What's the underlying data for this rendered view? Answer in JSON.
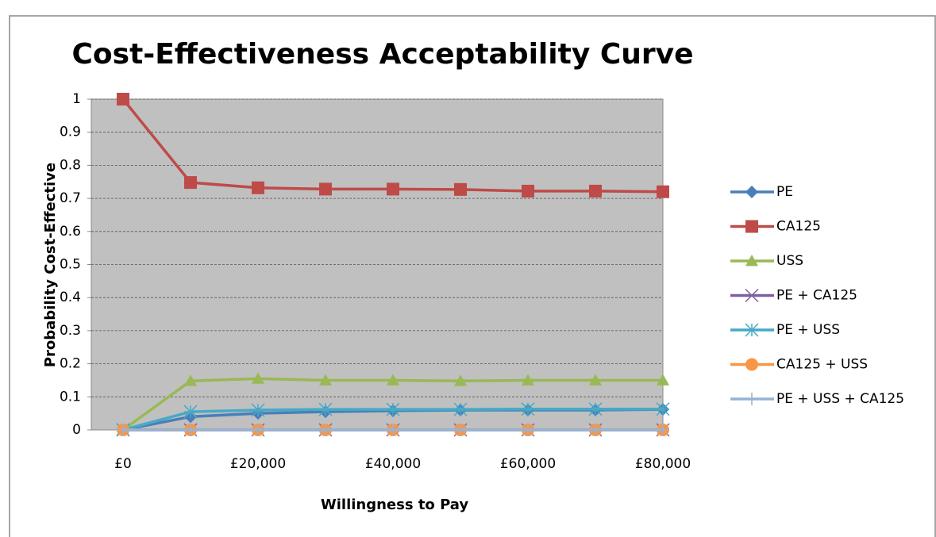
{
  "chart_data": {
    "type": "line",
    "title": "Cost-Effectiveness Acceptability Curve",
    "x_label": "Willingness to Pay",
    "y_label": "Probability Cost-Effective",
    "categories": [
      "£0",
      null,
      "£20,000",
      null,
      "£40,000",
      null,
      "£60,000",
      null,
      "£80,000"
    ],
    "ylim": [
      0,
      1
    ],
    "yticks": [
      0,
      0.1,
      0.2,
      0.3,
      0.4,
      0.5,
      0.6,
      0.7,
      0.8,
      0.9,
      1
    ],
    "grid": true,
    "legend": "right",
    "series": [
      {
        "name": "PE",
        "color": "#4a7ebb",
        "marker": "diamond",
        "values": [
          0,
          0.04,
          0.05,
          0.055,
          0.058,
          0.06,
          0.06,
          0.06,
          0.062
        ]
      },
      {
        "name": "CA125",
        "color": "#be4b48",
        "marker": "square",
        "values": [
          1,
          0.748,
          0.732,
          0.728,
          0.728,
          0.727,
          0.722,
          0.722,
          0.72
        ]
      },
      {
        "name": "USS",
        "color": "#98b954",
        "marker": "triangle",
        "values": [
          0,
          0.148,
          0.155,
          0.15,
          0.15,
          0.148,
          0.15,
          0.15,
          0.15
        ]
      },
      {
        "name": "PE + CA125",
        "color": "#7d60a0",
        "marker": "x",
        "values": [
          0,
          0,
          0,
          0,
          0,
          0,
          0,
          0,
          0
        ]
      },
      {
        "name": "PE + USS",
        "color": "#46aac5",
        "marker": "star",
        "values": [
          0,
          0.055,
          0.06,
          0.062,
          0.062,
          0.062,
          0.063,
          0.063,
          0.063
        ]
      },
      {
        "name": "CA125 + USS",
        "color": "#f79646",
        "marker": "circle",
        "values": [
          0,
          0,
          0,
          0,
          0,
          0,
          0,
          0,
          0
        ]
      },
      {
        "name": "PE + USS + CA125",
        "color": "#95b3d7",
        "marker": "plus",
        "values": [
          0,
          0,
          0,
          0,
          0,
          0,
          0,
          0,
          0
        ]
      }
    ]
  }
}
